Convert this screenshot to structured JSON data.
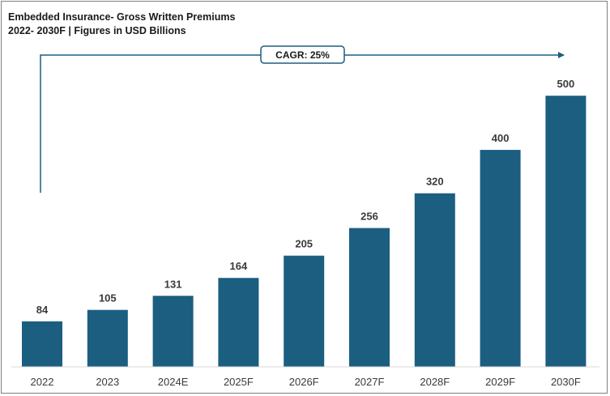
{
  "chart_data": {
    "type": "bar",
    "title": "Embedded Insurance- Gross Written Premiums",
    "subtitle": "2022- 2030F | Figures in USD Billions",
    "categories": [
      "2022",
      "2023",
      "2024E",
      "2025F",
      "2026F",
      "2027F",
      "2028F",
      "2029F",
      "2030F"
    ],
    "values": [
      84,
      105,
      131,
      164,
      205,
      256,
      320,
      400,
      500
    ],
    "value_labels": [
      "84",
      "105",
      "131",
      "164",
      "205",
      "256",
      "320",
      "400",
      "500"
    ],
    "ylim": [
      0,
      560
    ],
    "grid": false,
    "legend": "none",
    "bar_color": "#1b5e80",
    "annotation": {
      "text": "CAGR: 25%",
      "color": "#1b5e80"
    }
  }
}
